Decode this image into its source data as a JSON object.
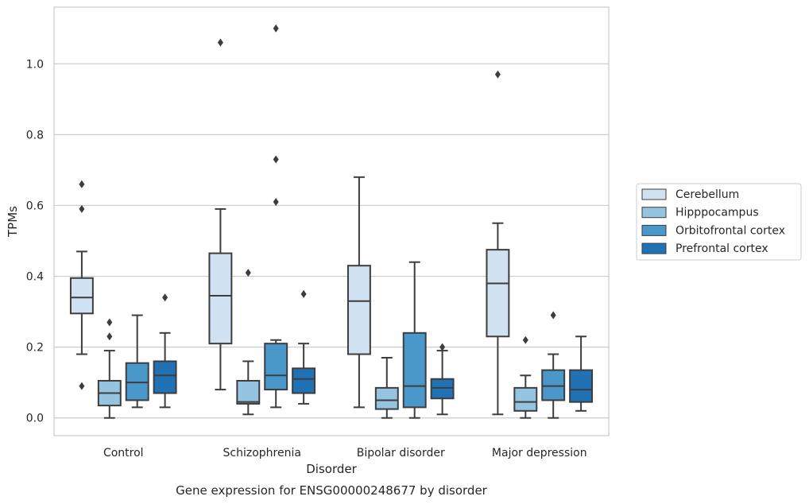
{
  "chart_data": {
    "type": "box",
    "title": "",
    "caption": "Gene expression for ENSG00000248677 by disorder",
    "xlabel": "Disorder",
    "ylabel": "TPMs",
    "ylim": [
      -0.05,
      1.16
    ],
    "yticks": [
      "0.0",
      "0.2",
      "0.4",
      "0.6",
      "0.8",
      "1.0"
    ],
    "grid": "horizontal",
    "legend_position": "right",
    "categories": [
      "Control",
      "Schizophrenia",
      "Bipolar disorder",
      "Major depression"
    ],
    "series": [
      {
        "name": "Cerebellum",
        "color": "#d0e1f2",
        "boxes": [
          {
            "whisker_low": 0.18,
            "q1": 0.295,
            "median": 0.34,
            "q3": 0.395,
            "whisker_high": 0.47,
            "outliers": [
              0.66,
              0.59,
              0.09
            ]
          },
          {
            "whisker_low": 0.08,
            "q1": 0.21,
            "median": 0.345,
            "q3": 0.465,
            "whisker_high": 0.59,
            "outliers": [
              1.06
            ]
          },
          {
            "whisker_low": 0.03,
            "q1": 0.18,
            "median": 0.33,
            "q3": 0.43,
            "whisker_high": 0.68,
            "outliers": []
          },
          {
            "whisker_low": 0.01,
            "q1": 0.23,
            "median": 0.38,
            "q3": 0.475,
            "whisker_high": 0.55,
            "outliers": [
              0.97
            ]
          }
        ]
      },
      {
        "name": "Hipppocampus",
        "color": "#94c4df",
        "boxes": [
          {
            "whisker_low": 0.0,
            "q1": 0.035,
            "median": 0.07,
            "q3": 0.105,
            "whisker_high": 0.19,
            "outliers": [
              0.27,
              0.23
            ]
          },
          {
            "whisker_low": 0.01,
            "q1": 0.04,
            "median": 0.045,
            "q3": 0.105,
            "whisker_high": 0.16,
            "outliers": [
              0.41
            ]
          },
          {
            "whisker_low": 0.0,
            "q1": 0.025,
            "median": 0.05,
            "q3": 0.085,
            "whisker_high": 0.17,
            "outliers": []
          },
          {
            "whisker_low": 0.0,
            "q1": 0.02,
            "median": 0.045,
            "q3": 0.085,
            "whisker_high": 0.12,
            "outliers": [
              0.22
            ]
          }
        ]
      },
      {
        "name": "Orbitofrontal cortex",
        "color": "#4a98c9",
        "boxes": [
          {
            "whisker_low": 0.03,
            "q1": 0.05,
            "median": 0.1,
            "q3": 0.155,
            "whisker_high": 0.29,
            "outliers": []
          },
          {
            "whisker_low": 0.03,
            "q1": 0.08,
            "median": 0.12,
            "q3": 0.21,
            "whisker_high": 0.22,
            "outliers": [
              1.1,
              0.73,
              0.61
            ]
          },
          {
            "whisker_low": 0.0,
            "q1": 0.03,
            "median": 0.09,
            "q3": 0.24,
            "whisker_high": 0.44,
            "outliers": []
          },
          {
            "whisker_low": 0.0,
            "q1": 0.05,
            "median": 0.09,
            "q3": 0.135,
            "whisker_high": 0.18,
            "outliers": [
              0.29
            ]
          }
        ]
      },
      {
        "name": "Prefrontal cortex",
        "color": "#2171b5",
        "boxes": [
          {
            "whisker_low": 0.03,
            "q1": 0.07,
            "median": 0.12,
            "q3": 0.16,
            "whisker_high": 0.24,
            "outliers": [
              0.34
            ]
          },
          {
            "whisker_low": 0.04,
            "q1": 0.07,
            "median": 0.11,
            "q3": 0.14,
            "whisker_high": 0.21,
            "outliers": [
              0.35
            ]
          },
          {
            "whisker_low": 0.01,
            "q1": 0.055,
            "median": 0.085,
            "q3": 0.11,
            "whisker_high": 0.19,
            "outliers": [
              0.2
            ]
          },
          {
            "whisker_low": 0.02,
            "q1": 0.045,
            "median": 0.08,
            "q3": 0.135,
            "whisker_high": 0.23,
            "outliers": []
          }
        ]
      }
    ]
  }
}
